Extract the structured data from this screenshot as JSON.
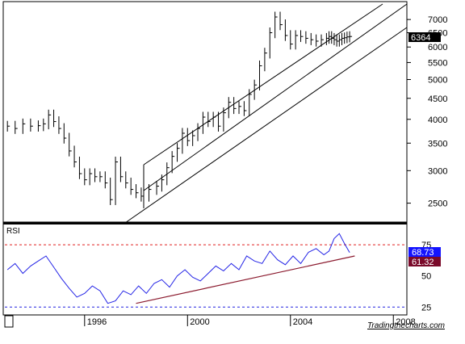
{
  "chart_data": [
    {
      "type": "ohlc",
      "panel": "price",
      "scale": "log",
      "ylim": [
        2300,
        7600
      ],
      "y_ticks": [
        2500,
        3000,
        3500,
        4000,
        4500,
        5000,
        5500,
        6000,
        6500,
        7000
      ],
      "last_price_label": "6364",
      "last_price": 6364,
      "accent_color": "#000000",
      "series": [
        {
          "x": [
            1993.0,
            1993.3,
            1993.6,
            1993.9,
            1994.2,
            1994.4,
            1994.6,
            1994.8,
            1995.0,
            1995.2,
            1995.4,
            1995.6,
            1995.8,
            1996.0,
            1996.2,
            1996.4,
            1996.6,
            1996.8,
            1997.0,
            1997.2,
            1997.4,
            1997.6,
            1997.8,
            1998.0,
            1998.2,
            1998.5,
            1998.8,
            1999.0,
            1999.2,
            1999.4,
            1999.6,
            1999.8,
            2000.0,
            2000.2,
            2000.4,
            2000.6,
            2000.8,
            2001.0,
            2001.2,
            2001.4,
            2001.6,
            2001.8,
            2002.0,
            2002.2,
            2002.4,
            2002.6,
            2002.8,
            2003.0,
            2003.2,
            2003.4,
            2003.6,
            2003.8,
            2004.0,
            2004.2,
            2004.4,
            2004.6,
            2004.8,
            2005.0,
            2005.2,
            2005.4,
            2005.5,
            2005.6,
            2005.7,
            2005.8,
            2005.9,
            2006.0,
            2006.1,
            2006.2,
            2006.3
          ],
          "close": [
            3850,
            3800,
            3900,
            3850,
            3860,
            3900,
            4100,
            3950,
            3800,
            3600,
            3350,
            3150,
            2950,
            2850,
            2950,
            2900,
            2900,
            2800,
            2550,
            3150,
            2900,
            2800,
            2700,
            2650,
            2600,
            2700,
            2750,
            2850,
            3050,
            3250,
            3400,
            3700,
            3550,
            3650,
            3800,
            4050,
            3950,
            4050,
            3850,
            4150,
            4400,
            4250,
            4300,
            4200,
            4600,
            4850,
            5400,
            5800,
            6500,
            7100,
            6800,
            6400,
            6100,
            6400,
            6364,
            6300,
            6250,
            6200,
            6250,
            6300,
            6364,
            6300,
            6250,
            6200,
            6250,
            6300,
            6320,
            6350,
            6364
          ]
        }
      ]
    },
    {
      "type": "line",
      "panel": "indicator",
      "title": "RSI",
      "ylim": [
        20,
        90
      ],
      "y_ticks": [
        25,
        50,
        75
      ],
      "overbought": 75,
      "oversold": 25,
      "value_labels": [
        "68.73",
        "61.32"
      ],
      "value_label_colors": [
        "#1414ff",
        "#7a0a2a"
      ],
      "series": [
        {
          "color": "#2323e6",
          "x": [
            1993.0,
            1993.3,
            1993.6,
            1993.9,
            1994.2,
            1994.5,
            1994.8,
            1995.1,
            1995.4,
            1995.7,
            1996.0,
            1996.3,
            1996.6,
            1996.9,
            1997.2,
            1997.5,
            1997.8,
            1998.1,
            1998.4,
            1998.7,
            1999.0,
            1999.3,
            1999.6,
            1999.9,
            2000.2,
            2000.5,
            2000.8,
            2001.1,
            2001.4,
            2001.7,
            2002.0,
            2002.3,
            2002.6,
            2002.9,
            2003.2,
            2003.5,
            2003.8,
            2004.1,
            2004.4,
            2004.7,
            2005.0,
            2005.3,
            2005.5,
            2005.7,
            2005.9,
            2006.1,
            2006.3
          ],
          "values": [
            55,
            60,
            52,
            58,
            62,
            66,
            57,
            48,
            40,
            33,
            36,
            42,
            38,
            28,
            30,
            38,
            35,
            42,
            36,
            44,
            47,
            41,
            50,
            55,
            49,
            46,
            52,
            58,
            54,
            60,
            55,
            66,
            62,
            60,
            70,
            63,
            59,
            66,
            60,
            69,
            72,
            67,
            70,
            80,
            84,
            76,
            68.73
          ]
        },
        {
          "name": "RSI trendline",
          "color": "#8b1a2e",
          "x": [
            1998.0,
            2006.5
          ],
          "values": [
            28,
            66
          ]
        }
      ]
    }
  ],
  "x_axis": {
    "labels": [
      "1996",
      "2000",
      "2004",
      "2008"
    ]
  },
  "watermark": "Tradingthecharts.com"
}
